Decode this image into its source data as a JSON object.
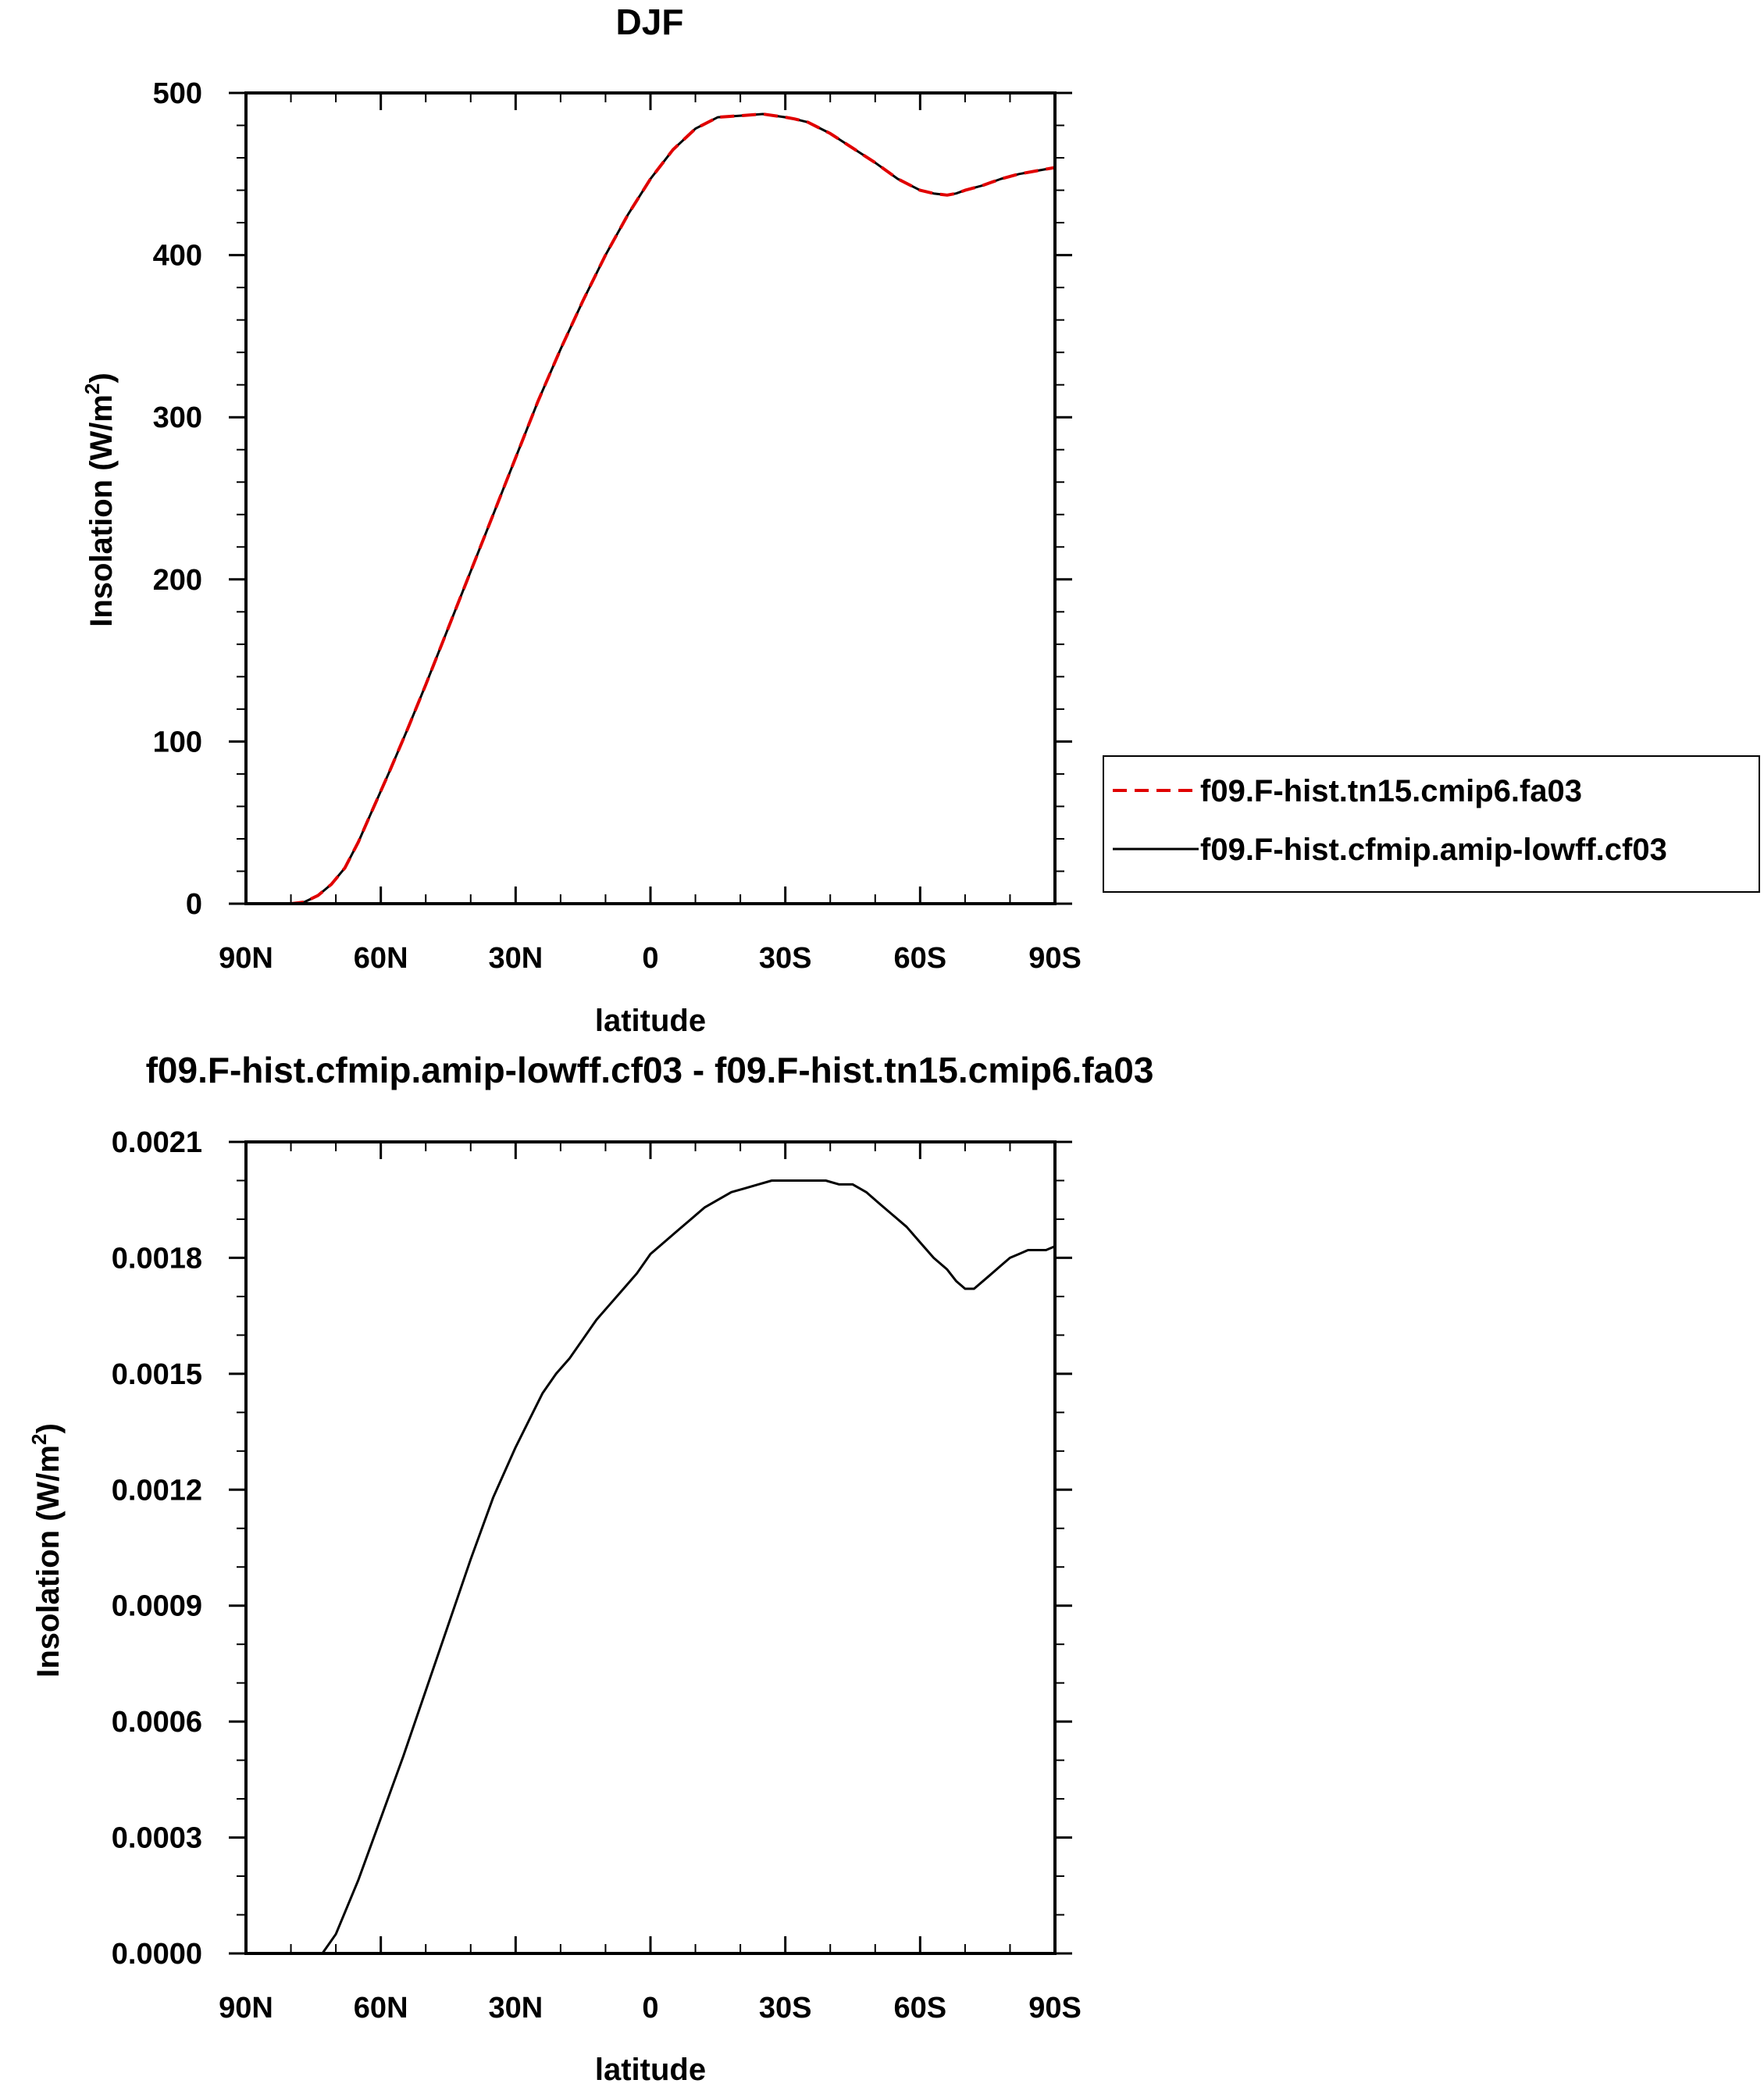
{
  "chart_data": [
    {
      "type": "line",
      "title": "DJF",
      "xlabel": "latitude",
      "ylabel": "Insolation (W/m",
      "ylabel_superscript": "2",
      "ylabel_close": ")",
      "x_ticks": [
        90,
        60,
        30,
        0,
        -30,
        -60,
        -90
      ],
      "x_tick_labels": [
        "90N",
        "60N",
        "30N",
        "0",
        "30S",
        "60S",
        "90S"
      ],
      "y_ticks": [
        0,
        100,
        200,
        300,
        400,
        500
      ],
      "y_tick_labels": [
        "0",
        "100",
        "200",
        "300",
        "400",
        "500"
      ],
      "xlim": [
        90,
        -90
      ],
      "ylim": [
        0,
        500
      ],
      "legend_position": "right",
      "series": [
        {
          "name": "f09.F-hist.tn15.cmip6.fa03",
          "color": "#e00000",
          "dash": "dashed",
          "x": [
            90,
            85,
            80,
            77,
            74,
            71,
            68,
            65,
            62,
            58,
            54,
            50,
            45,
            40,
            35,
            30,
            25,
            20,
            15,
            10,
            5,
            0,
            -5,
            -10,
            -15,
            -20,
            -25,
            -30,
            -32,
            -35,
            -40,
            -45,
            -50,
            -55,
            -60,
            -63,
            -66,
            -68,
            -70,
            -74,
            -78,
            -82,
            -86,
            -90
          ],
          "y": [
            0,
            0,
            0,
            1,
            5,
            12,
            22,
            38,
            57,
            82,
            108,
            135,
            170,
            205,
            240,
            275,
            310,
            342,
            372,
            400,
            425,
            447,
            465,
            478,
            485,
            486,
            487,
            485,
            484,
            482,
            475,
            466,
            457,
            447,
            440,
            438,
            437,
            438,
            440,
            443,
            447,
            450,
            452,
            454
          ]
        },
        {
          "name": "f09.F-hist.cfmip.amip-lowff.cf03",
          "color": "#000000",
          "dash": "solid",
          "x": [
            90,
            85,
            80,
            77,
            74,
            71,
            68,
            65,
            62,
            58,
            54,
            50,
            45,
            40,
            35,
            30,
            25,
            20,
            15,
            10,
            5,
            0,
            -5,
            -10,
            -15,
            -20,
            -25,
            -30,
            -32,
            -35,
            -40,
            -45,
            -50,
            -55,
            -60,
            -63,
            -66,
            -68,
            -70,
            -74,
            -78,
            -82,
            -86,
            -90
          ],
          "y": [
            0,
            0,
            0,
            1,
            5,
            12,
            22,
            38,
            57,
            82,
            108,
            135,
            170,
            205,
            240,
            275,
            310,
            342,
            372,
            400,
            425,
            447,
            465,
            478,
            485,
            486,
            487,
            485,
            484,
            482,
            475,
            466,
            457,
            447,
            440,
            438,
            437,
            438,
            440,
            443,
            447,
            450,
            452,
            454
          ]
        }
      ]
    },
    {
      "type": "line",
      "title": "f09.F-hist.cfmip.amip-lowff.cf03 - f09.F-hist.tn15.cmip6.fa03",
      "xlabel": "latitude",
      "ylabel": "Insolation (W/m",
      "ylabel_superscript": "2",
      "ylabel_close": ")",
      "x_ticks": [
        90,
        60,
        30,
        0,
        -30,
        -60,
        -90
      ],
      "x_tick_labels": [
        "90N",
        "60N",
        "30N",
        "0",
        "30S",
        "60S",
        "90S"
      ],
      "y_ticks": [
        0,
        0.0003,
        0.0006,
        0.0009,
        0.0012,
        0.0015,
        0.0018,
        0.0021
      ],
      "y_tick_labels": [
        "0.0000",
        "0.0003",
        "0.0006",
        "0.0009",
        "0.0012",
        "0.0015",
        "0.0018",
        "0.0021"
      ],
      "xlim": [
        90,
        -90
      ],
      "ylim": [
        0,
        0.0021
      ],
      "series": [
        {
          "name": "",
          "color": "#000000",
          "dash": "solid",
          "x": [
            90,
            80,
            73,
            70,
            65,
            60,
            55,
            50,
            45,
            40,
            35,
            30,
            27,
            24,
            21,
            18,
            15,
            12,
            9,
            6,
            3,
            0,
            -3,
            -6,
            -9,
            -12,
            -15,
            -18,
            -21,
            -24,
            -27,
            -30,
            -33,
            -36,
            -39,
            -42,
            -45,
            -48,
            -51,
            -54,
            -57,
            -60,
            -63,
            -66,
            -68,
            -70,
            -72,
            -75,
            -78,
            -80,
            -82,
            -84,
            -86,
            -88,
            -90
          ],
          "y": [
            0,
            0,
            0,
            5e-05,
            0.00019,
            0.00035,
            0.00051,
            0.00068,
            0.00085,
            0.00102,
            0.00118,
            0.00131,
            0.00138,
            0.00145,
            0.0015,
            0.00154,
            0.00159,
            0.00164,
            0.00168,
            0.00172,
            0.00176,
            0.00181,
            0.00184,
            0.00187,
            0.0019,
            0.00193,
            0.00195,
            0.00197,
            0.00198,
            0.00199,
            0.002,
            0.002,
            0.002,
            0.002,
            0.002,
            0.00199,
            0.00199,
            0.00197,
            0.00194,
            0.00191,
            0.00188,
            0.00184,
            0.0018,
            0.00177,
            0.00174,
            0.00172,
            0.00172,
            0.00175,
            0.00178,
            0.0018,
            0.00181,
            0.00182,
            0.00182,
            0.00182,
            0.00183
          ]
        }
      ]
    }
  ]
}
